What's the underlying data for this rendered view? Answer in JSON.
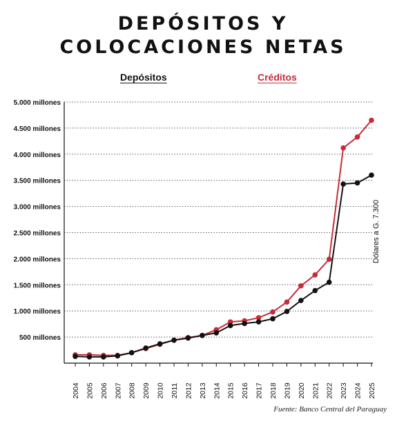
{
  "title_line1": "DEPÓSITOS Y",
  "title_line2": "COLOCACIONES NETAS",
  "source": "Fuente: Banco Central del Paraguay",
  "side_note": "Dólares a G. 7.300",
  "colors": {
    "depositos": "#111111",
    "creditos": "#c62b38",
    "grid": "#333333"
  },
  "chart_data": {
    "type": "line",
    "x": [
      "2004",
      "2005",
      "2006",
      "2007",
      "2008",
      "2009",
      "2010",
      "2011",
      "2012",
      "2013",
      "2014",
      "2015",
      "2016",
      "2017",
      "2018",
      "2019",
      "2020",
      "2021",
      "2022",
      "2023",
      "2024",
      "2025"
    ],
    "ylim": [
      0,
      5000
    ],
    "ytick_values": [
      500,
      1000,
      1500,
      2000,
      2500,
      3000,
      3500,
      4000,
      4500,
      5000
    ],
    "ytick_labels": [
      "500 millones",
      "1.000 millones",
      "1.500  millones",
      "2.000 millones",
      "2.500 millones",
      "3.000 millones",
      "3.500 millones",
      "4.000 millones",
      "4.500 millones",
      "5.000 millones"
    ],
    "grid": true,
    "legend_position": "top",
    "series": [
      {
        "name": "Depósitos",
        "color": "#111111",
        "values": [
          130,
          120,
          120,
          140,
          200,
          290,
          370,
          440,
          480,
          530,
          580,
          720,
          760,
          790,
          850,
          990,
          1200,
          1390,
          1550,
          3430,
          3450,
          3600
        ]
      },
      {
        "name": "Créditos",
        "color": "#c62b38",
        "values": [
          160,
          160,
          150,
          150,
          200,
          280,
          360,
          440,
          490,
          530,
          640,
          790,
          810,
          870,
          980,
          1170,
          1480,
          1690,
          1990,
          4120,
          4330,
          4650
        ]
      }
    ]
  }
}
